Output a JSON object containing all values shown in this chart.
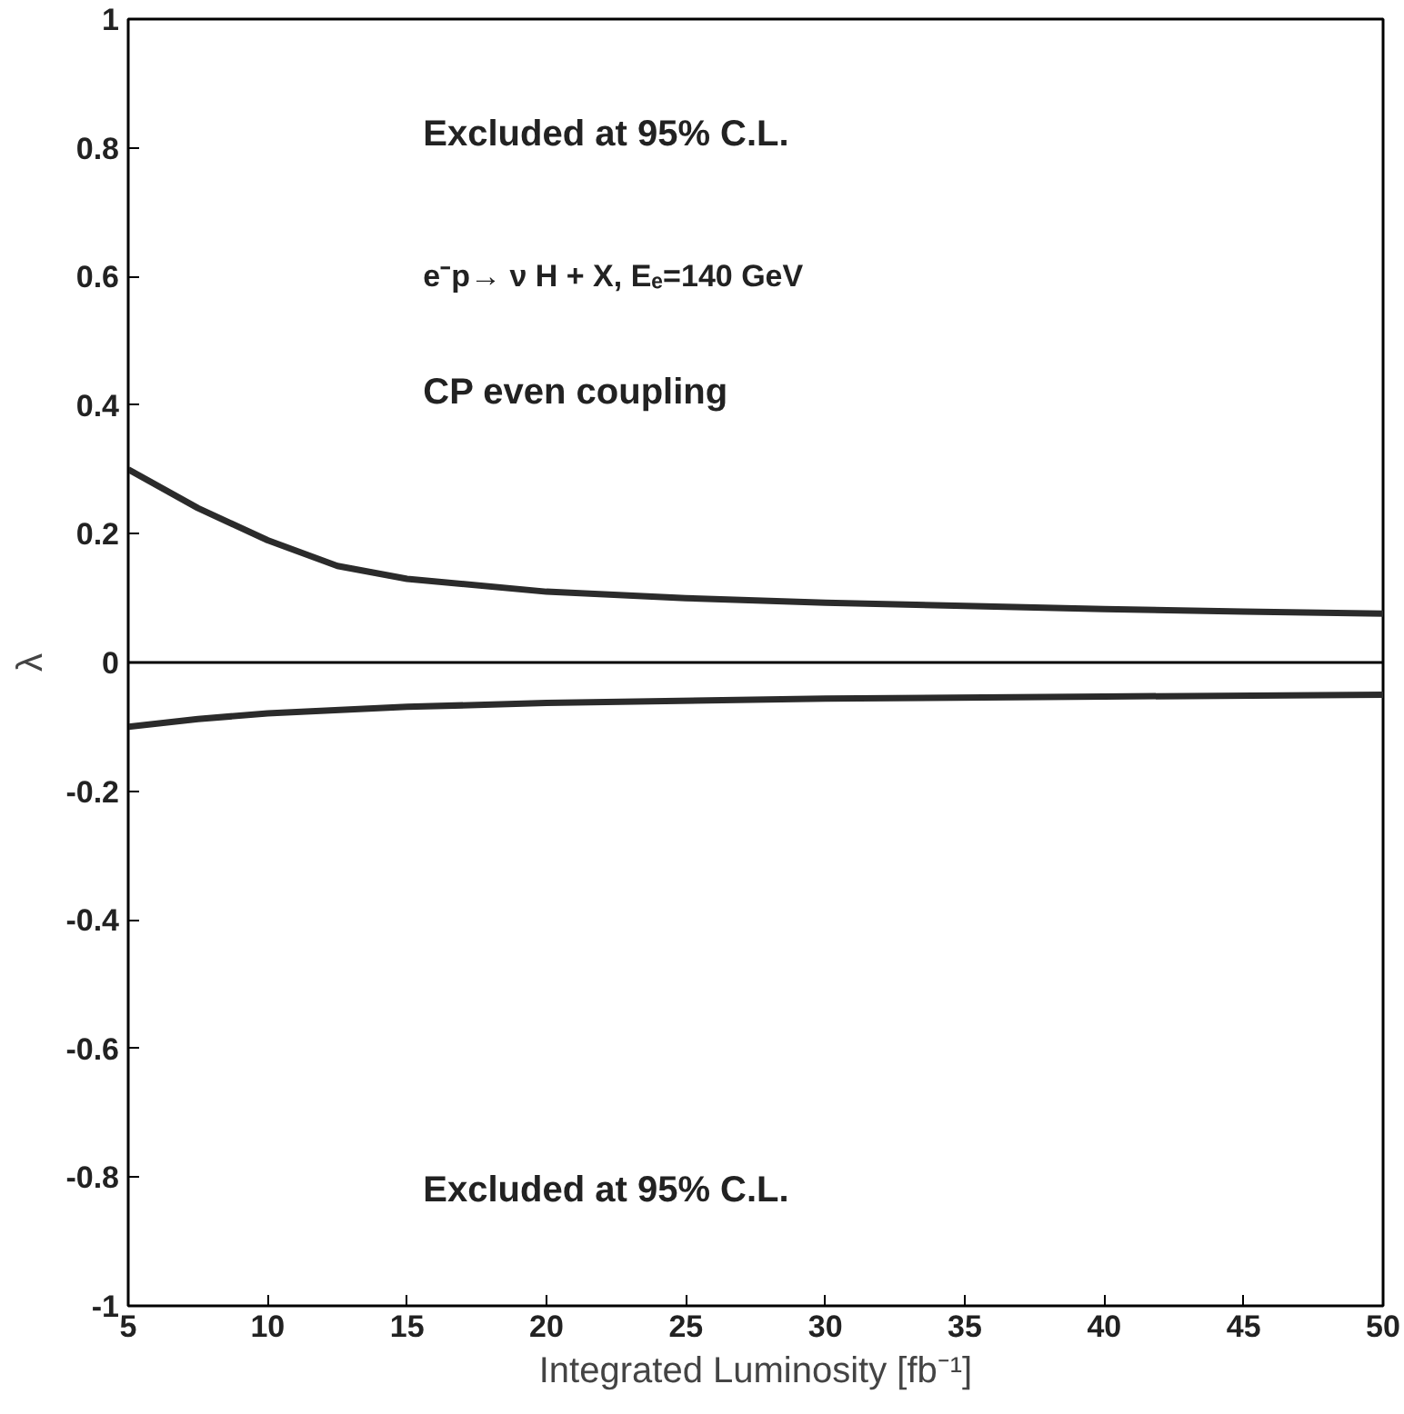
{
  "chart_data": {
    "type": "line",
    "xlabel": "Integrated Luminosity [fb⁻¹]",
    "ylabel": "λ",
    "xlim": [
      5,
      50
    ],
    "ylim": [
      -1,
      1
    ],
    "xticks": [
      5,
      10,
      15,
      20,
      25,
      30,
      35,
      40,
      45,
      50
    ],
    "yticks": [
      -1,
      -0.8,
      -0.6,
      -0.4,
      -0.2,
      0,
      0.2,
      0.4,
      0.6,
      0.8,
      1
    ],
    "grid": false,
    "marker": "none",
    "line_style": "solid",
    "series": [
      {
        "color": "#2b2b2b",
        "x": [
          5,
          7.5,
          10,
          12.5,
          15,
          20,
          25,
          30,
          35,
          40,
          45,
          50
        ],
        "values": [
          0.3,
          0.24,
          0.19,
          0.15,
          0.13,
          0.11,
          0.1,
          0.093,
          0.088,
          0.083,
          0.079,
          0.076
        ]
      },
      {
        "color": "#2b2b2b",
        "x": [
          5,
          7.5,
          10,
          15,
          20,
          30,
          40,
          50
        ],
        "values": [
          -0.1,
          -0.088,
          -0.079,
          -0.069,
          -0.063,
          -0.056,
          -0.053,
          -0.05
        ]
      }
    ],
    "ref_lines": [
      {
        "axis": "y",
        "value": 0,
        "color": "#000000",
        "line_style": "solid"
      }
    ],
    "annotations": [
      "Excluded at 95% C.L.",
      "e⁻p→ ν H + X, Eₑ=140 GeV",
      "CP even coupling",
      "Excluded at 95% C.L."
    ]
  }
}
